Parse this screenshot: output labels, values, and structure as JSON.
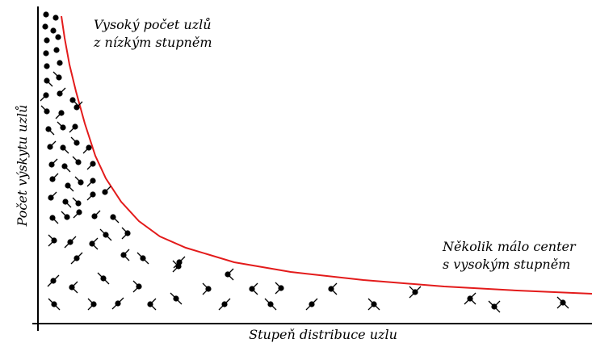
{
  "axes": {
    "x_label": "Stupeň distribuce uzlu",
    "y_label": "Počet výskytu uzlů"
  },
  "annotations": {
    "high_count": [
      "Vysoký počet uzlů",
      "z nízkým stupněm"
    ],
    "few_hubs": [
      "Několik málo center",
      "s vysokým stupněm"
    ]
  },
  "colors": {
    "curve": "#e31b1b",
    "axis": "#000000",
    "node": "#000000"
  }
}
